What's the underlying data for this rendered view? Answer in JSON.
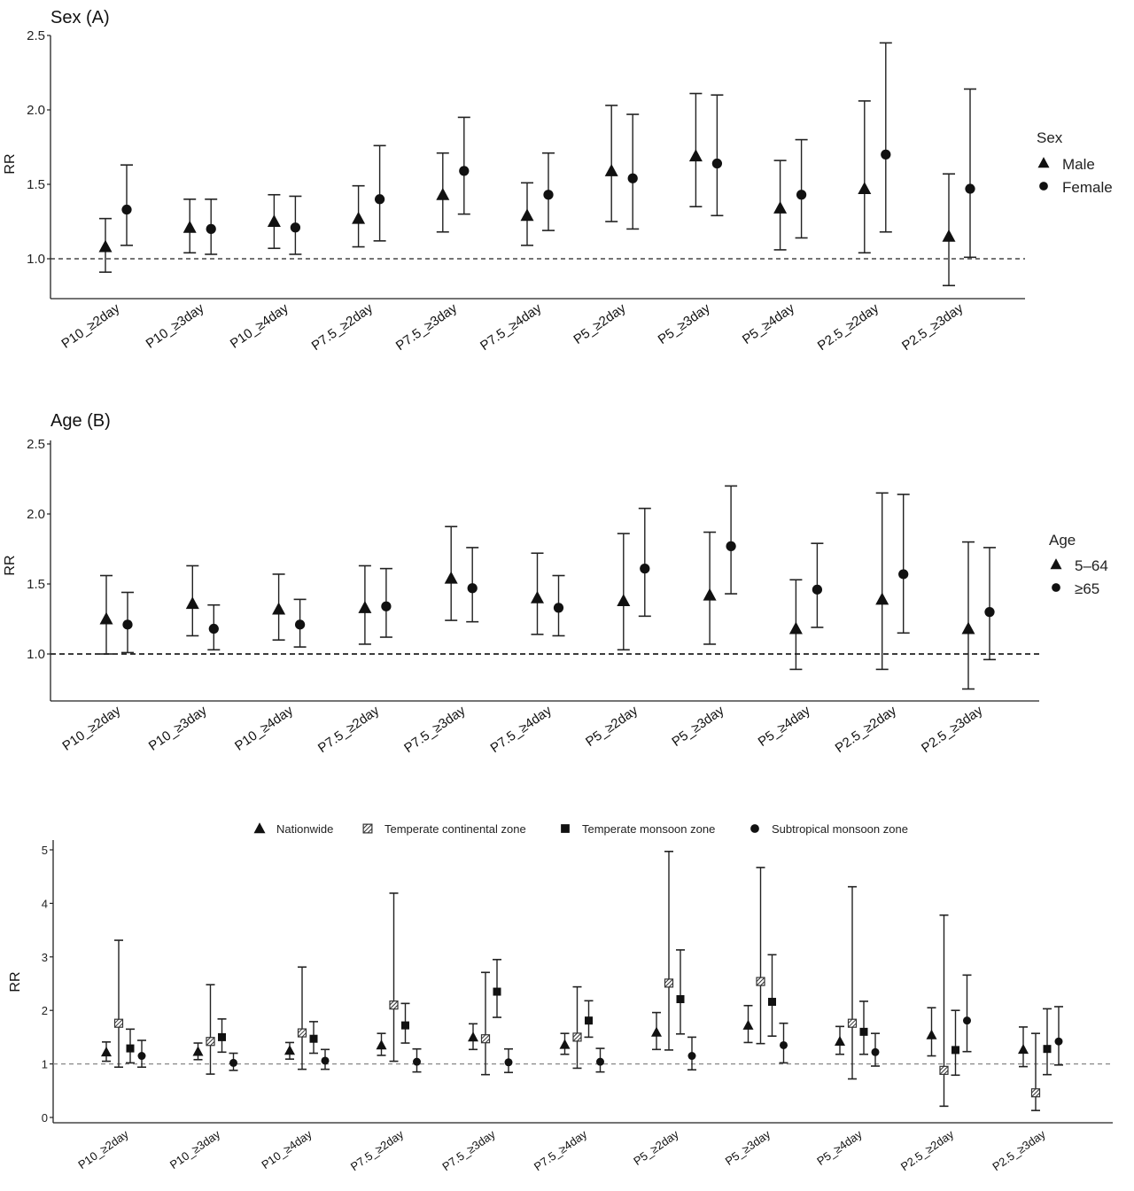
{
  "chart_data": [
    {
      "type": "scatter",
      "subtype": "point-range (RR with 95% CI)",
      "title": "Sex (A)",
      "ylabel": "RR",
      "ylim": [
        0.73,
        2.5
      ],
      "yticks": [
        "1.0",
        "1.5",
        "2.0",
        "2.5"
      ],
      "reference_line": 1.0,
      "categories": [
        "P10_≥2day",
        "P10_≥3day",
        "P10_≥4day",
        "P7.5_≥2day",
        "P7.5_≥3day",
        "P7.5_≥4day",
        "P5_≥2day",
        "P5_≥3day",
        "P5_≥4day",
        "P2.5_≥2day",
        "P2.5_≥3day"
      ],
      "legend_title": "Sex",
      "legend_position": "right",
      "series": [
        {
          "name": "Male",
          "marker": "triangle",
          "values": [
            1.08,
            1.21,
            1.25,
            1.27,
            1.43,
            1.29,
            1.59,
            1.69,
            1.34,
            1.47,
            1.15
          ],
          "lower": [
            0.91,
            1.04,
            1.07,
            1.08,
            1.18,
            1.09,
            1.25,
            1.35,
            1.06,
            1.04,
            0.82
          ],
          "upper": [
            1.27,
            1.4,
            1.43,
            1.49,
            1.71,
            1.51,
            2.03,
            2.11,
            1.66,
            2.06,
            1.57
          ]
        },
        {
          "name": "Female",
          "marker": "circle",
          "values": [
            1.33,
            1.2,
            1.21,
            1.4,
            1.59,
            1.43,
            1.54,
            1.64,
            1.43,
            1.7,
            1.47
          ],
          "lower": [
            1.09,
            1.03,
            1.03,
            1.12,
            1.3,
            1.19,
            1.2,
            1.29,
            1.14,
            1.18,
            1.01
          ],
          "upper": [
            1.63,
            1.4,
            1.42,
            1.76,
            1.95,
            1.71,
            1.97,
            2.1,
            1.8,
            2.45,
            2.14
          ]
        }
      ]
    },
    {
      "type": "scatter",
      "subtype": "point-range (RR with 95% CI)",
      "title": "Age (B)",
      "ylabel": "RR",
      "ylim": [
        0.67,
        2.5
      ],
      "yticks": [
        "1.0",
        "1.5",
        "2.0",
        "2.5"
      ],
      "reference_line": 1.0,
      "categories": [
        "P10_≥2day",
        "P10_≥3day",
        "P10_≥4day",
        "P7.5_≥2day",
        "P7.5_≥3day",
        "P7.5_≥4day",
        "P5_≥2day",
        "P5_≥3day",
        "P5_≥4day",
        "P2.5_≥2day",
        "P2.5_≥3day"
      ],
      "legend_title": "Age",
      "legend_position": "right",
      "series": [
        {
          "name": "5–64",
          "marker": "triangle",
          "values": [
            1.25,
            1.36,
            1.32,
            1.33,
            1.54,
            1.4,
            1.38,
            1.42,
            1.18,
            1.39,
            1.18
          ],
          "lower": [
            1.0,
            1.13,
            1.1,
            1.07,
            1.24,
            1.14,
            1.03,
            1.07,
            0.89,
            0.89,
            0.75
          ],
          "upper": [
            1.56,
            1.63,
            1.57,
            1.63,
            1.91,
            1.72,
            1.86,
            1.87,
            1.53,
            2.15,
            1.8
          ]
        },
        {
          "name": "≥65",
          "marker": "circle",
          "values": [
            1.21,
            1.18,
            1.21,
            1.34,
            1.47,
            1.33,
            1.61,
            1.77,
            1.46,
            1.57,
            1.3
          ],
          "lower": [
            1.01,
            1.03,
            1.05,
            1.12,
            1.23,
            1.13,
            1.27,
            1.43,
            1.19,
            1.15,
            0.96
          ],
          "upper": [
            1.44,
            1.35,
            1.39,
            1.61,
            1.76,
            1.56,
            2.04,
            2.2,
            1.79,
            2.14,
            1.76
          ]
        }
      ]
    },
    {
      "type": "scatter",
      "subtype": "point-range (RR with 95% CI)",
      "title": "",
      "ylabel": "RR",
      "ylim": [
        -0.1,
        5.1
      ],
      "yticks": [
        "0",
        "1",
        "2",
        "3",
        "4",
        "5"
      ],
      "reference_line": 1.0,
      "categories": [
        "P10_≥2day",
        "P10_≥3day",
        "P10_≥4day",
        "P7.5_≥2day",
        "P7.5_≥3day",
        "P7.5_≥4day",
        "P5_≥2day",
        "P5_≥3day",
        "P5_≥4day",
        "P2.5_≥2day",
        "P2.5_≥3day"
      ],
      "legend_position": "top",
      "series": [
        {
          "name": "Nationwide",
          "marker": "triangle",
          "values": [
            1.22,
            1.23,
            1.25,
            1.35,
            1.5,
            1.36,
            1.59,
            1.72,
            1.42,
            1.54,
            1.27
          ],
          "lower": [
            1.05,
            1.08,
            1.09,
            1.16,
            1.27,
            1.18,
            1.27,
            1.4,
            1.18,
            1.15,
            0.95
          ],
          "upper": [
            1.41,
            1.39,
            1.4,
            1.57,
            1.75,
            1.57,
            1.96,
            2.09,
            1.7,
            2.05,
            1.69
          ]
        },
        {
          "name": "Temperate continental zone",
          "marker": "hatched-square",
          "values": [
            1.76,
            1.42,
            1.58,
            2.1,
            1.47,
            1.5,
            2.51,
            2.54,
            1.76,
            0.88,
            0.46
          ],
          "lower": [
            0.94,
            0.81,
            0.9,
            1.05,
            0.8,
            0.92,
            1.26,
            1.38,
            0.72,
            0.21,
            0.13
          ],
          "upper": [
            3.31,
            2.48,
            2.81,
            4.19,
            2.71,
            2.44,
            4.97,
            4.67,
            4.31,
            3.78,
            1.57
          ]
        },
        {
          "name": "Temperate monsoon zone",
          "marker": "square",
          "values": [
            1.29,
            1.5,
            1.47,
            1.72,
            2.35,
            1.81,
            2.21,
            2.16,
            1.6,
            1.26,
            1.28
          ],
          "lower": [
            1.02,
            1.22,
            1.2,
            1.39,
            1.87,
            1.5,
            1.56,
            1.52,
            1.18,
            0.79,
            0.8
          ],
          "upper": [
            1.65,
            1.84,
            1.79,
            2.13,
            2.95,
            2.18,
            3.13,
            3.04,
            2.17,
            2.0,
            2.03
          ]
        },
        {
          "name": "Subtropical monsoon zone",
          "marker": "circle",
          "values": [
            1.15,
            1.02,
            1.06,
            1.04,
            1.03,
            1.04,
            1.15,
            1.35,
            1.22,
            1.81,
            1.42
          ],
          "lower": [
            0.94,
            0.88,
            0.9,
            0.85,
            0.84,
            0.85,
            0.89,
            1.02,
            0.96,
            1.23,
            0.98
          ],
          "upper": [
            1.44,
            1.2,
            1.27,
            1.28,
            1.28,
            1.29,
            1.5,
            1.76,
            1.57,
            2.66,
            2.07
          ]
        }
      ]
    }
  ]
}
